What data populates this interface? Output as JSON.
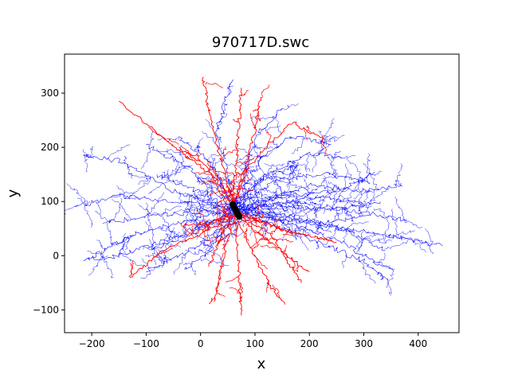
{
  "chart_data": {
    "type": "scatter",
    "title": "970717D.swc",
    "xlabel": "x",
    "ylabel": "y",
    "xlim": [
      -250,
      475
    ],
    "ylim": [
      -142,
      372
    ],
    "xticks": [
      -200,
      -100,
      0,
      100,
      200,
      300,
      400
    ],
    "yticks": [
      -100,
      0,
      100,
      200,
      300
    ],
    "grid": false,
    "soma": {
      "color": "#000000",
      "x": [
        59,
        71
      ],
      "y": [
        95,
        72
      ]
    },
    "series": [
      {
        "color": "#ff0000",
        "kind": "apical-dendrite",
        "branches": [
          [
            [
              60,
              100
            ],
            [
              45,
              150
            ],
            [
              28,
              210
            ],
            [
              15,
              270
            ],
            [
              5,
              330
            ]
          ],
          [
            [
              58,
              102
            ],
            [
              20,
              150
            ],
            [
              -60,
              210
            ],
            [
              -150,
              285
            ]
          ],
          [
            [
              62,
              100
            ],
            [
              30,
              150
            ],
            [
              -40,
              200
            ]
          ],
          [
            [
              64,
              100
            ],
            [
              80,
              160
            ],
            [
              100,
              230
            ],
            [
              110,
              290
            ]
          ],
          [
            [
              63,
              100
            ],
            [
              85,
              160
            ],
            [
              130,
              210
            ],
            [
              170,
              245
            ],
            [
              225,
              215
            ]
          ],
          [
            [
              60,
              102
            ],
            [
              68,
              200
            ],
            [
              75,
              310
            ]
          ],
          [
            [
              60,
              100
            ],
            [
              40,
              110
            ],
            [
              20,
              150
            ]
          ],
          [
            [
              62,
              75
            ],
            [
              20,
              60
            ],
            [
              -10,
              40
            ]
          ],
          [
            [
              60,
              75
            ],
            [
              0,
              40
            ],
            [
              -70,
              10
            ],
            [
              -130,
              -40
            ]
          ],
          [
            [
              62,
              75
            ],
            [
              45,
              10
            ],
            [
              30,
              -60
            ],
            [
              25,
              -85
            ]
          ],
          [
            [
              64,
              72
            ],
            [
              70,
              -20
            ],
            [
              75,
              -110
            ]
          ],
          [
            [
              66,
              72
            ],
            [
              95,
              10
            ],
            [
              130,
              -60
            ],
            [
              155,
              -90
            ]
          ],
          [
            [
              68,
              72
            ],
            [
              120,
              30
            ],
            [
              200,
              -30
            ]
          ],
          [
            [
              70,
              75
            ],
            [
              130,
              40
            ],
            [
              185,
              -50
            ]
          ],
          [
            [
              70,
              78
            ],
            [
              150,
              50
            ],
            [
              250,
              25
            ]
          ],
          [
            [
              68,
              78
            ],
            [
              120,
              60
            ],
            [
              170,
              40
            ]
          ],
          [
            [
              60,
              72
            ],
            [
              40,
              40
            ],
            [
              15,
              -20
            ]
          ],
          [
            [
              58,
              74
            ],
            [
              10,
              60
            ],
            [
              -30,
              55
            ]
          ]
        ]
      },
      {
        "color": "#0000ff",
        "kind": "basal-dendrites-and-axon",
        "branches": [
          [
            [
              60,
              85
            ],
            [
              -50,
              120
            ],
            [
              -150,
              175
            ],
            [
              -215,
              185
            ]
          ],
          [
            [
              58,
              90
            ],
            [
              -20,
              160
            ],
            [
              -100,
              205
            ]
          ],
          [
            [
              58,
              85
            ],
            [
              -40,
              60
            ],
            [
              -120,
              40
            ],
            [
              -215,
              -10
            ]
          ],
          [
            [
              58,
              80
            ],
            [
              -60,
              30
            ],
            [
              -150,
              0
            ],
            [
              -200,
              -5
            ]
          ],
          [
            [
              60,
              85
            ],
            [
              -30,
              100
            ],
            [
              -150,
              110
            ],
            [
              -230,
              90
            ]
          ],
          [
            [
              62,
              80
            ],
            [
              0,
              20
            ],
            [
              -100,
              -30
            ]
          ],
          [
            [
              62,
              95
            ],
            [
              30,
              230
            ],
            [
              60,
              325
            ]
          ],
          [
            [
              65,
              95
            ],
            [
              90,
              180
            ],
            [
              110,
              230
            ],
            [
              150,
              270
            ]
          ],
          [
            [
              65,
              95
            ],
            [
              120,
              150
            ],
            [
              200,
              190
            ],
            [
              260,
              180
            ]
          ],
          [
            [
              68,
              85
            ],
            [
              150,
              110
            ],
            [
              260,
              120
            ],
            [
              320,
              155
            ]
          ],
          [
            [
              68,
              85
            ],
            [
              170,
              100
            ],
            [
              300,
              80
            ],
            [
              380,
              65
            ]
          ],
          [
            [
              70,
              82
            ],
            [
              200,
              60
            ],
            [
              330,
              40
            ],
            [
              445,
              18
            ]
          ],
          [
            [
              70,
              80
            ],
            [
              180,
              40
            ],
            [
              300,
              -10
            ],
            [
              345,
              -45
            ]
          ],
          [
            [
              68,
              82
            ],
            [
              160,
              60
            ],
            [
              250,
              30
            ],
            [
              355,
              -30
            ]
          ],
          [
            [
              68,
              88
            ],
            [
              200,
              130
            ],
            [
              300,
              120
            ],
            [
              370,
              130
            ]
          ],
          [
            [
              66,
              90
            ],
            [
              140,
              140
            ],
            [
              230,
              150
            ],
            [
              310,
              135
            ]
          ],
          [
            [
              64,
              92
            ],
            [
              110,
              180
            ],
            [
              170,
              220
            ],
            [
              240,
              205
            ]
          ],
          [
            [
              62,
              90
            ],
            [
              20,
              170
            ],
            [
              -40,
              220
            ]
          ],
          [
            [
              60,
              88
            ],
            [
              -10,
              120
            ],
            [
              -80,
              150
            ]
          ],
          [
            [
              66,
              85
            ],
            [
              130,
              90
            ],
            [
              250,
              85
            ],
            [
              330,
              100
            ]
          ],
          [
            [
              64,
              80
            ],
            [
              120,
              70
            ],
            [
              220,
              60
            ],
            [
              310,
              75
            ]
          ],
          [
            [
              62,
              78
            ],
            [
              40,
              40
            ],
            [
              10,
              0
            ],
            [
              -30,
              -25
            ]
          ],
          [
            [
              60,
              82
            ],
            [
              -10,
              80
            ],
            [
              -90,
              75
            ],
            [
              -180,
              60
            ]
          ],
          [
            [
              62,
              84
            ],
            [
              -20,
              40
            ],
            [
              -90,
              10
            ]
          ],
          [
            [
              66,
              92
            ],
            [
              100,
              130
            ],
            [
              180,
              170
            ]
          ],
          [
            [
              67,
              88
            ],
            [
              140,
              95
            ],
            [
              210,
              110
            ],
            [
              300,
              95
            ]
          ],
          [
            [
              69,
              84
            ],
            [
              160,
              75
            ],
            [
              260,
              50
            ],
            [
              340,
              10
            ]
          ]
        ]
      }
    ]
  }
}
